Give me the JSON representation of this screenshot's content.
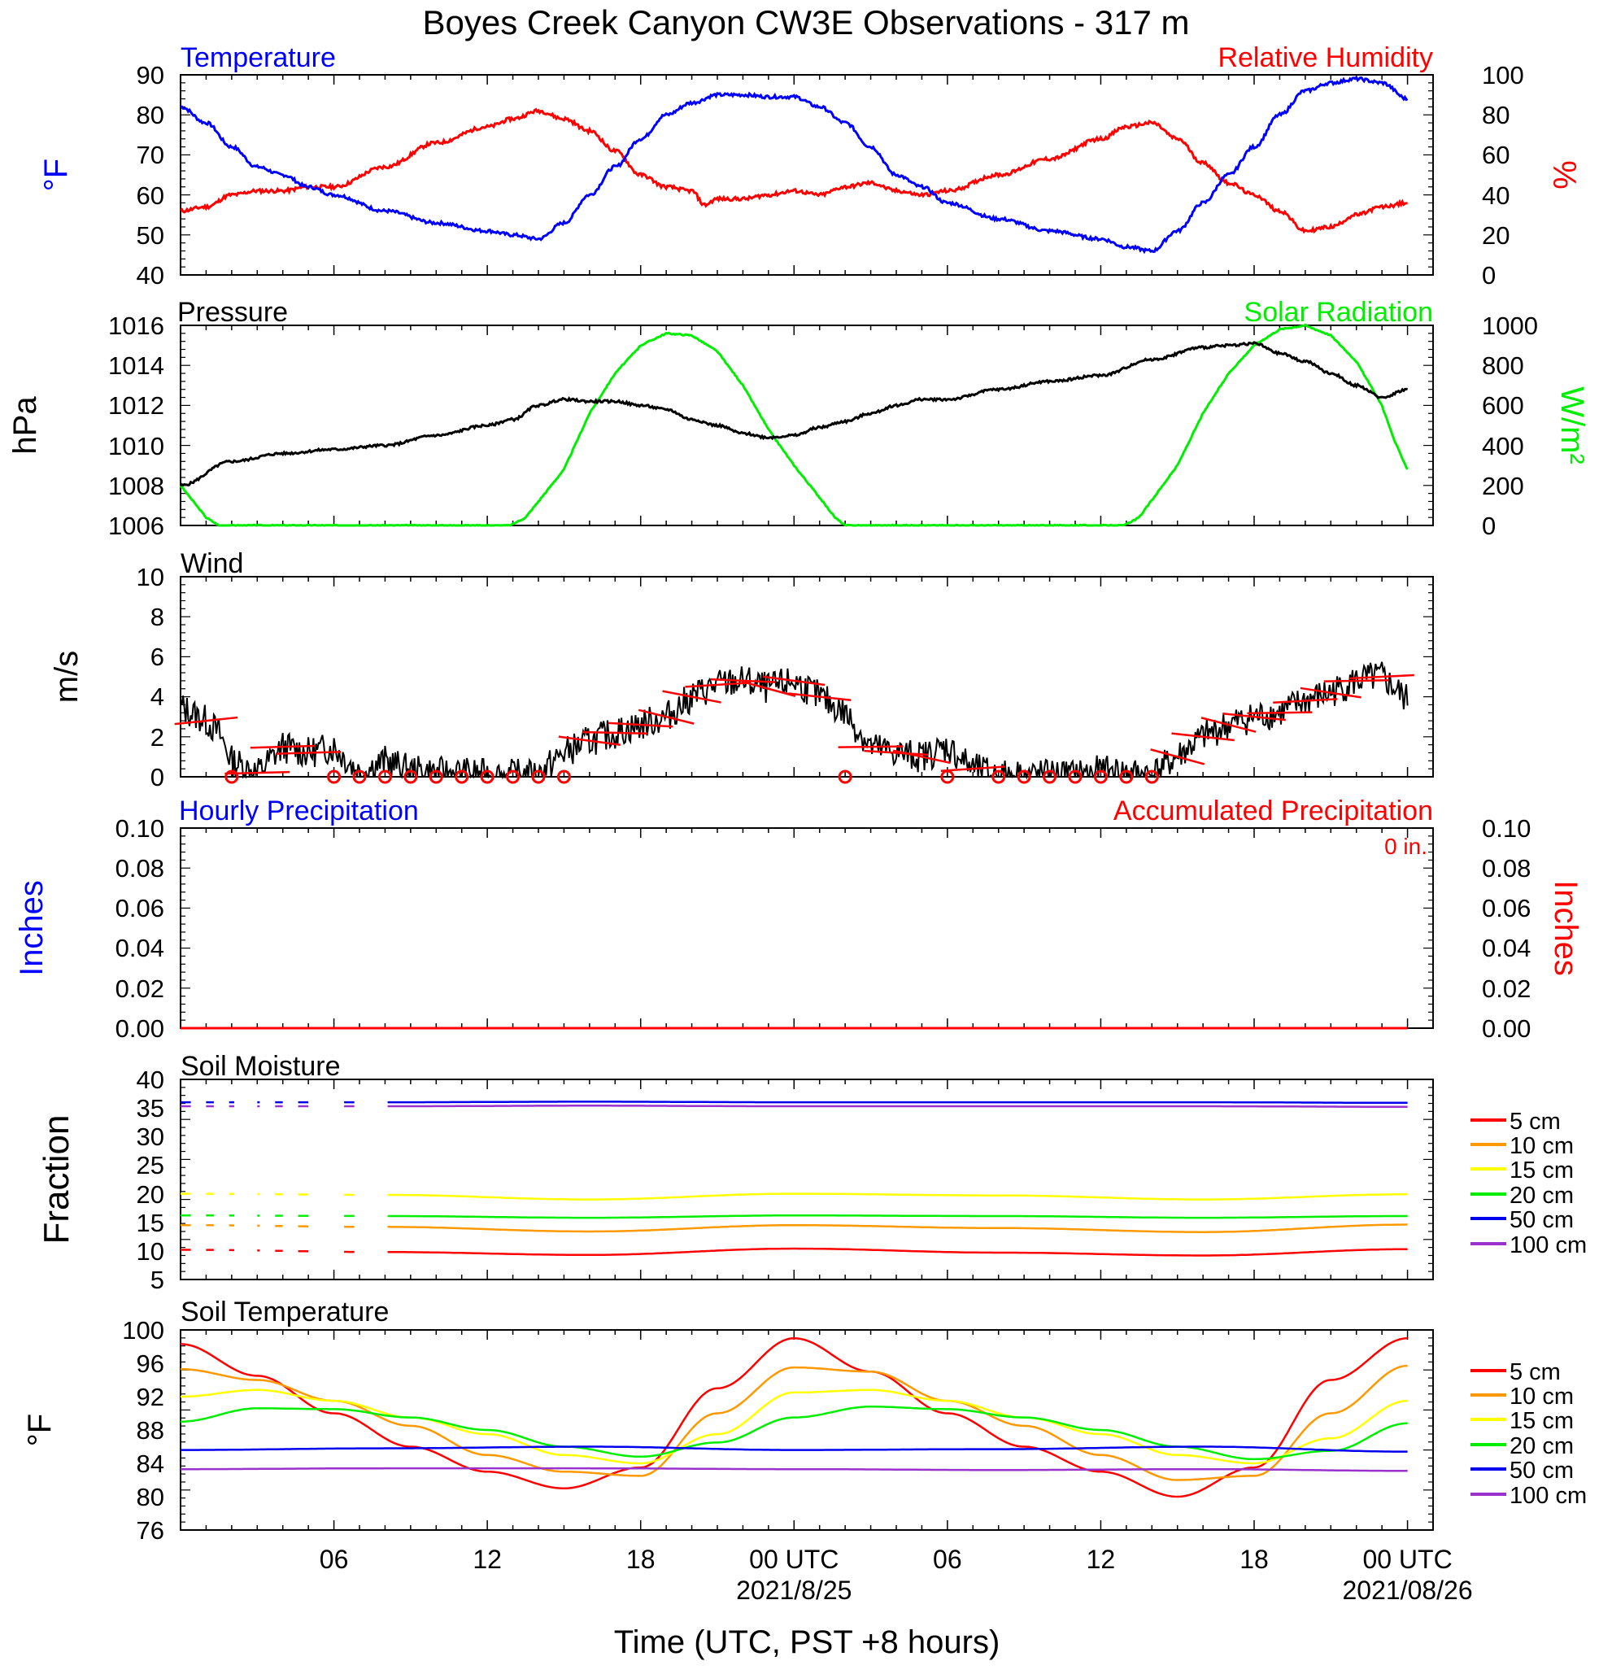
{
  "title": "Boyes Creek Canyon CW3E Observations - 317 m",
  "xaxis": {
    "ticks": [
      {
        "hour": 6,
        "label": "06",
        "date": ""
      },
      {
        "hour": 12,
        "label": "12",
        "date": ""
      },
      {
        "hour": 18,
        "label": "18",
        "date": ""
      },
      {
        "hour": 24,
        "label": "00 UTC",
        "date": "2021/8/25"
      },
      {
        "hour": 30,
        "label": "06",
        "date": ""
      },
      {
        "hour": 36,
        "label": "12",
        "date": ""
      },
      {
        "hour": 42,
        "label": "18",
        "date": ""
      },
      {
        "hour": 48,
        "label": "00 UTC",
        "date": "2021/08/26"
      }
    ],
    "label": "Time (UTC, PST +8 hours)",
    "range_hours": [
      0,
      49
    ]
  },
  "panels": {
    "temp_rh": {
      "left_title": "Temperature",
      "right_title": "Relative Humidity",
      "left_unit": "°F",
      "right_unit": "%",
      "left_ticks": [
        "40",
        "50",
        "60",
        "70",
        "80",
        "90"
      ],
      "right_ticks": [
        "0",
        "20",
        "40",
        "60",
        "80",
        "100"
      ]
    },
    "press_solar": {
      "left_title": "Pressure",
      "right_title": "Solar Radiation",
      "left_unit": "hPa",
      "right_unit": "W/m²",
      "left_ticks": [
        "1006",
        "1008",
        "1010",
        "1012",
        "1014",
        "1016"
      ],
      "right_ticks": [
        "0",
        "200",
        "400",
        "600",
        "800",
        "1000"
      ]
    },
    "wind": {
      "left_title": "Wind",
      "left_unit": "m/s",
      "left_ticks": [
        "0",
        "2",
        "4",
        "6",
        "8",
        "10"
      ]
    },
    "precip": {
      "left_title": "Hourly Precipitation",
      "right_title": "Accumulated Precipitation",
      "total_label": "0 in.",
      "left_unit": "Inches",
      "right_unit": "Inches",
      "left_ticks": [
        "0.00",
        "0.02",
        "0.04",
        "0.06",
        "0.08",
        "0.10"
      ],
      "right_ticks": [
        "0.00",
        "0.02",
        "0.04",
        "0.06",
        "0.08",
        "0.10"
      ]
    },
    "soil_moisture": {
      "left_title": "Soil Moisture",
      "left_unit": "Fraction",
      "left_ticks": [
        "5",
        "10",
        "15",
        "20",
        "25",
        "30",
        "35",
        "40"
      ],
      "legend": [
        "5 cm",
        "10 cm",
        "15 cm",
        "20 cm",
        "50 cm",
        "100 cm"
      ]
    },
    "soil_temp": {
      "left_title": "Soil Temperature",
      "left_unit": "°F",
      "left_ticks": [
        "76",
        "80",
        "84",
        "88",
        "92",
        "96",
        "100"
      ],
      "legend": [
        "5 cm",
        "10 cm",
        "15 cm",
        "20 cm",
        "50 cm",
        "100 cm"
      ]
    }
  },
  "colors": {
    "temperature": "#0000ff",
    "humidity": "#ff0000",
    "pressure": "#000000",
    "solar": "#00ee00",
    "wind": "#000000",
    "wind_barb": "#ff0000",
    "depth_5cm": "#ff0000",
    "depth_10cm": "#ff9900",
    "depth_15cm": "#ffff00",
    "depth_20cm": "#00ee00",
    "depth_50cm": "#0000ee",
    "depth_100cm": "#9932cc"
  },
  "chart_data": [
    {
      "type": "line",
      "title": "Temperature / Relative Humidity",
      "x_unit": "hours since 2021-08-24 00 UTC",
      "series": [
        {
          "name": "Temperature",
          "axis": "left",
          "unit": "°F",
          "x": [
            0,
            1,
            2,
            3,
            4,
            5,
            6,
            8,
            10,
            12,
            13,
            14,
            15,
            16,
            17,
            18,
            19,
            20,
            21,
            22,
            23,
            24,
            25,
            26,
            27,
            28,
            29,
            30,
            32,
            34,
            36,
            37,
            38,
            39,
            40,
            41,
            42,
            43,
            44,
            45,
            46,
            47,
            48
          ],
          "y": [
            82,
            78,
            72,
            67,
            65,
            62,
            60,
            56,
            53,
            51,
            50,
            49,
            53,
            60,
            67,
            74,
            80,
            83,
            85,
            85,
            84.5,
            84.5,
            82,
            78,
            72,
            65,
            62,
            58,
            54,
            51,
            49,
            47,
            46,
            51,
            58,
            65,
            72,
            80,
            86,
            88,
            89,
            88,
            84
          ]
        },
        {
          "name": "Relative Humidity",
          "axis": "right",
          "unit": "%",
          "x": [
            0,
            1,
            2,
            3,
            4,
            5,
            6,
            8,
            10,
            12,
            13,
            14,
            15,
            16,
            17,
            18,
            19,
            20,
            20.5,
            21,
            22,
            23,
            24,
            25,
            26,
            27,
            28,
            29,
            30,
            32,
            34,
            36,
            37,
            38,
            39,
            40,
            41,
            42,
            43,
            44,
            45,
            46,
            47,
            48
          ],
          "y": [
            32,
            34,
            40,
            42,
            42,
            44,
            44,
            54,
            66,
            74,
            78,
            82,
            78,
            72,
            62,
            50,
            44,
            42,
            35,
            38,
            38,
            40,
            42,
            40,
            44,
            46,
            42,
            40,
            42,
            50,
            58,
            68,
            74,
            76,
            68,
            56,
            46,
            40,
            32,
            22,
            24,
            30,
            34,
            36
          ]
        }
      ],
      "left_ylim": [
        40,
        90
      ],
      "right_ylim": [
        0,
        100
      ]
    },
    {
      "type": "line",
      "title": "Pressure / Solar Radiation",
      "x_unit": "hours since 2021-08-24 00 UTC",
      "series": [
        {
          "name": "Pressure",
          "axis": "left",
          "unit": "hPa",
          "x": [
            0,
            2,
            4,
            6,
            8,
            10,
            12,
            13,
            14,
            15,
            16,
            17,
            18,
            19,
            20,
            21,
            22,
            23,
            24,
            25,
            26,
            27,
            28,
            29,
            30,
            32,
            34,
            36,
            38,
            40,
            41,
            42,
            43,
            44,
            45,
            46,
            47,
            48
          ],
          "y": [
            1008.0,
            1009.2,
            1009.6,
            1009.8,
            1010.0,
            1010.5,
            1011.0,
            1011.3,
            1012.0,
            1012.3,
            1012.2,
            1012.2,
            1012.0,
            1011.8,
            1011.3,
            1011.0,
            1010.6,
            1010.4,
            1010.5,
            1010.9,
            1011.2,
            1011.6,
            1012.0,
            1012.3,
            1012.3,
            1012.8,
            1013.2,
            1013.5,
            1014.3,
            1014.9,
            1015.0,
            1015.1,
            1014.6,
            1014.2,
            1013.6,
            1013.0,
            1012.4,
            1012.8
          ]
        },
        {
          "name": "Solar Radiation",
          "axis": "right",
          "unit": "W/m²",
          "x": [
            0,
            1,
            1.5,
            12.9,
            13.5,
            15,
            16,
            17,
            18,
            19,
            20,
            21,
            22,
            23,
            24,
            25,
            25.6,
            26,
            36.9,
            37.5,
            39,
            40,
            41,
            42,
            43,
            44,
            45,
            46,
            47,
            47.5,
            48
          ],
          "y": [
            200,
            40,
            0,
            0,
            40,
            280,
            560,
            760,
            900,
            960,
            950,
            870,
            700,
            480,
            300,
            140,
            40,
            0,
            0,
            40,
            300,
            560,
            760,
            900,
            980,
            1000,
            950,
            820,
            600,
            420,
            280
          ]
        }
      ],
      "left_ylim": [
        1006,
        1016
      ],
      "right_ylim": [
        0,
        1000
      ]
    },
    {
      "type": "line",
      "title": "Wind",
      "x_unit": "hours since 2021-08-24 00 UTC",
      "series": [
        {
          "name": "Wind speed",
          "unit": "m/s",
          "x": [
            0,
            1,
            1.5,
            2,
            3,
            4,
            5,
            6,
            7,
            8,
            9,
            10,
            11,
            12,
            13,
            14,
            15,
            16,
            17,
            18,
            19,
            20,
            21,
            22,
            23,
            24,
            25,
            26,
            27,
            28,
            29,
            30,
            31,
            32,
            33,
            34,
            35,
            36,
            37,
            38,
            39,
            40,
            41,
            42,
            43,
            44,
            45,
            46,
            47,
            48
          ],
          "y": [
            3.5,
            2.8,
            2.2,
            0.8,
            0.2,
            1.5,
            1.2,
            1.5,
            0.2,
            0.8,
            0.3,
            0.2,
            0.2,
            0.1,
            0.1,
            0.1,
            1.2,
            1.8,
            2.2,
            2.6,
            3.0,
            4.0,
            4.6,
            4.8,
            4.4,
            4.8,
            4.0,
            3.2,
            1.5,
            1.2,
            1.0,
            1.5,
            0.4,
            0.1,
            0.1,
            0.1,
            0.1,
            0.3,
            0.2,
            0.1,
            1.0,
            2.0,
            2.6,
            3.0,
            3.2,
            3.8,
            4.2,
            4.8,
            5.0,
            3.8
          ]
        }
      ],
      "calm_hours": [
        2,
        6,
        7,
        8,
        9,
        10,
        11,
        12,
        13,
        14,
        15,
        26,
        30,
        32,
        33,
        34,
        35,
        36,
        37,
        38
      ],
      "ylim": [
        0,
        10
      ]
    },
    {
      "type": "line",
      "title": "Hourly / Accumulated Precipitation",
      "series": [
        {
          "name": "Hourly Precipitation",
          "axis": "left",
          "x": [
            0,
            48
          ],
          "y": [
            0,
            0
          ]
        },
        {
          "name": "Accumulated Precipitation",
          "axis": "right",
          "x": [
            0,
            48
          ],
          "y": [
            0,
            0
          ]
        }
      ],
      "left_ylim": [
        0,
        0.1
      ],
      "right_ylim": [
        0,
        0.1
      ]
    },
    {
      "type": "line",
      "title": "Soil Moisture",
      "x_unit": "hours since 2021-08-24 00 UTC",
      "gaps_hours": [
        [
          2.2,
          3.0
        ],
        [
          5.2,
          6.0
        ],
        [
          7.0,
          7.8
        ]
      ],
      "series": [
        {
          "name": "5 cm",
          "x": [
            0,
            8,
            16,
            24,
            32,
            40,
            48
          ],
          "y": [
            10.2,
            9.8,
            9.3,
            10.4,
            9.7,
            9.2,
            10.3
          ]
        },
        {
          "name": "10 cm",
          "x": [
            0,
            8,
            16,
            24,
            32,
            40,
            48
          ],
          "y": [
            14.5,
            14.2,
            13.4,
            14.5,
            14.0,
            13.3,
            14.6
          ]
        },
        {
          "name": "15 cm",
          "x": [
            0,
            8,
            16,
            24,
            32,
            40,
            48
          ],
          "y": [
            20.0,
            19.8,
            19.0,
            20.0,
            19.7,
            19.0,
            19.9
          ]
        },
        {
          "name": "20 cm",
          "x": [
            0,
            8,
            16,
            24,
            32,
            40,
            48
          ],
          "y": [
            16.2,
            16.1,
            15.8,
            16.2,
            16.1,
            15.8,
            16.1
          ]
        },
        {
          "name": "50 cm",
          "x": [
            0,
            8,
            16,
            24,
            32,
            40,
            48
          ],
          "y": [
            36.0,
            36.0,
            36.1,
            36.0,
            36.0,
            36.0,
            35.9
          ]
        },
        {
          "name": "100 cm",
          "x": [
            0,
            8,
            16,
            24,
            32,
            40,
            48
          ],
          "y": [
            35.3,
            35.3,
            35.4,
            35.3,
            35.3,
            35.3,
            35.2
          ]
        }
      ],
      "ylim": [
        5,
        40
      ]
    },
    {
      "type": "line",
      "title": "Soil Temperature",
      "x_unit": "hours since 2021-08-24 00 UTC",
      "series": [
        {
          "name": "5 cm",
          "x": [
            0,
            3,
            6,
            9,
            12,
            15,
            18,
            21,
            24,
            27,
            30,
            33,
            36,
            39,
            42,
            45,
            48
          ],
          "y": [
            98.3,
            94.5,
            90.0,
            86.0,
            83.0,
            81.0,
            83.5,
            93.0,
            99.0,
            95.0,
            90.0,
            86.0,
            83.0,
            80.0,
            83.5,
            94.0,
            99.0
          ]
        },
        {
          "name": "10 cm",
          "x": [
            0,
            3,
            6,
            9,
            12,
            15,
            18,
            21,
            24,
            27,
            30,
            33,
            36,
            39,
            42,
            45,
            48
          ],
          "y": [
            95.3,
            94.0,
            91.5,
            88.5,
            85.0,
            83.0,
            82.5,
            90.0,
            95.5,
            95.0,
            91.5,
            88.5,
            85.0,
            82.0,
            82.5,
            90.0,
            95.7
          ]
        },
        {
          "name": "15 cm",
          "x": [
            0,
            3,
            6,
            9,
            12,
            15,
            18,
            21,
            24,
            27,
            30,
            33,
            36,
            39,
            42,
            45,
            48
          ],
          "y": [
            92.0,
            92.8,
            91.5,
            89.5,
            87.5,
            85.0,
            84.0,
            87.5,
            92.5,
            92.8,
            91.5,
            89.5,
            87.5,
            85.0,
            84.0,
            87.0,
            91.5
          ]
        },
        {
          "name": "20 cm",
          "x": [
            0,
            3,
            6,
            9,
            12,
            15,
            18,
            21,
            24,
            27,
            30,
            33,
            36,
            39,
            42,
            45,
            48
          ],
          "y": [
            89.0,
            90.6,
            90.5,
            89.5,
            88.0,
            86.0,
            84.8,
            86.5,
            89.5,
            90.8,
            90.5,
            89.5,
            88.0,
            86.0,
            84.5,
            85.5,
            88.8
          ]
        },
        {
          "name": "50 cm",
          "x": [
            0,
            8,
            16,
            24,
            32,
            40,
            48
          ],
          "y": [
            85.6,
            85.8,
            86.0,
            85.6,
            85.7,
            86.0,
            85.4
          ]
        },
        {
          "name": "100 cm",
          "x": [
            0,
            8,
            16,
            24,
            32,
            40,
            48
          ],
          "y": [
            83.3,
            83.4,
            83.4,
            83.3,
            83.2,
            83.3,
            83.1
          ]
        }
      ],
      "ylim": [
        76,
        100
      ]
    }
  ]
}
